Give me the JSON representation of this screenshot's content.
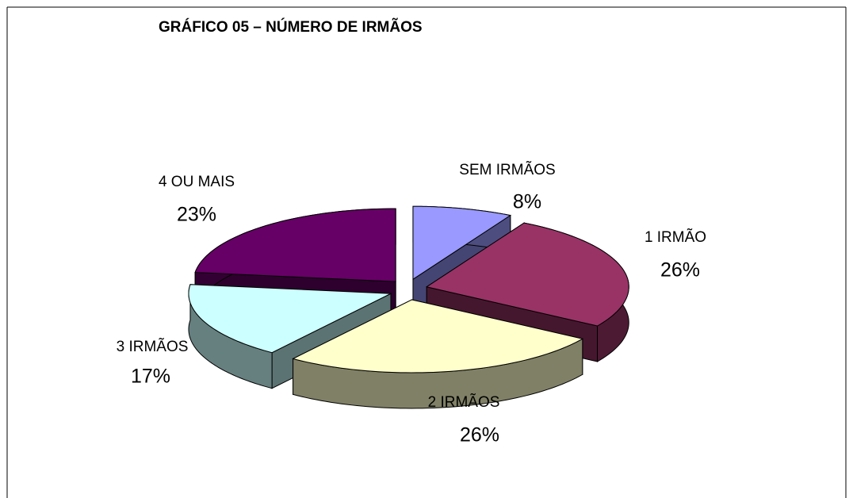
{
  "chart_data": {
    "type": "pie3d",
    "title": "GRÁFICO 05 – NÚMERO DE IRMÃOS",
    "categories": [
      "SEM IRMÃOS",
      "1  IRMÃO",
      "2  IRMÃOS",
      "3  IRMÃOS",
      "4 OU MAIS"
    ],
    "values": [
      8,
      26,
      26,
      17,
      23
    ],
    "value_labels": [
      "8%",
      "26%",
      "26%",
      "17%",
      "23%"
    ],
    "colors": [
      "#9999ff",
      "#993366",
      "#ffffcc",
      "#ccffff",
      "#660066"
    ]
  }
}
